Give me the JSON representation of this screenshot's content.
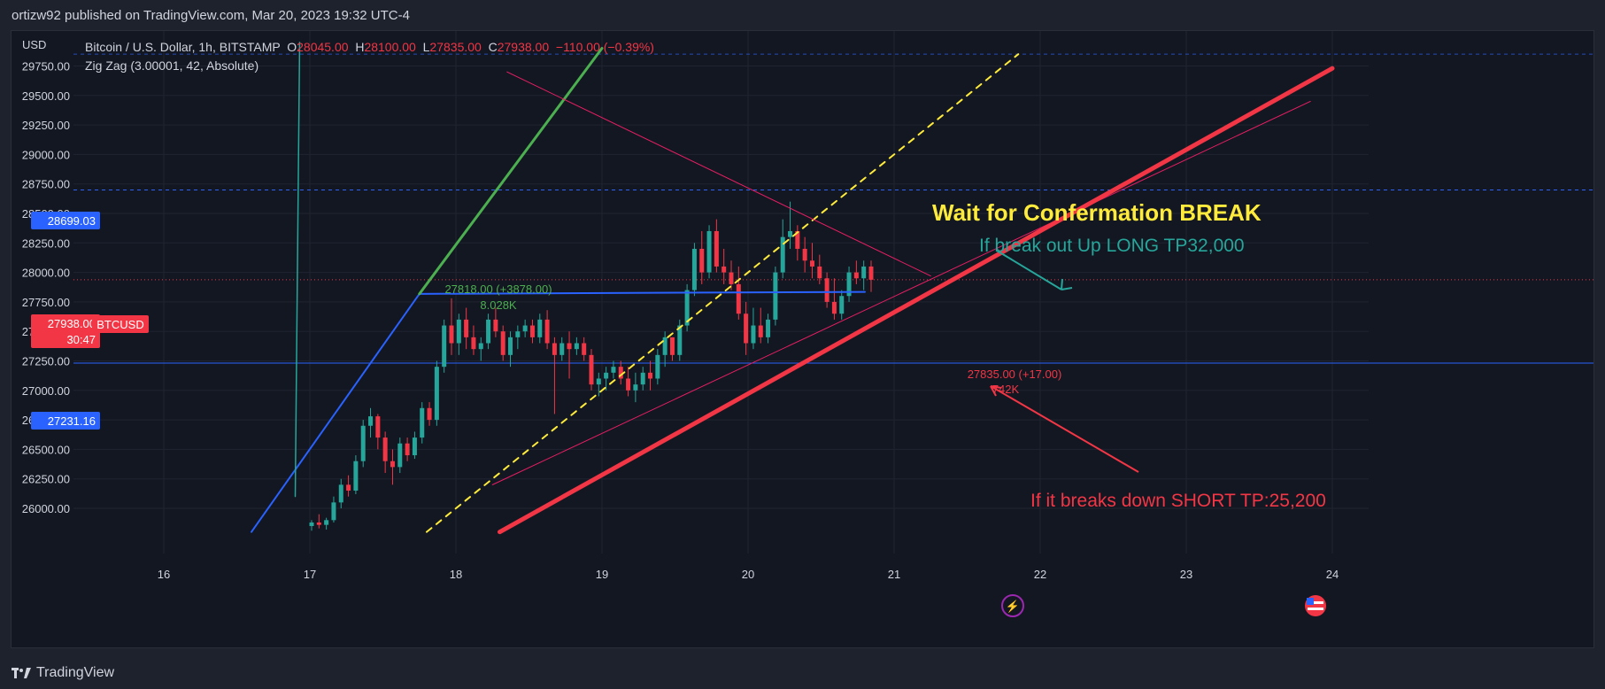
{
  "header": {
    "published_text": "ortizw92 published on TradingView.com, Mar 20, 2023 19:32 UTC-4"
  },
  "legend": {
    "symbol": "Bitcoin / U.S. Dollar, 1h, BITSTAMP",
    "open_label": "O",
    "open": "28045.00",
    "high_label": "H",
    "high": "28100.00",
    "low_label": "L",
    "low": "27835.00",
    "close_label": "C",
    "close": "27938.00",
    "change": "−110.00 (−0.39%)",
    "indicator": "Zig Zag (3.00001, 42, Absolute)"
  },
  "axis": {
    "currency": "USD"
  },
  "price_tags": {
    "upper": "28699.03",
    "lower": "27231.16",
    "current": "27938.00",
    "countdown": "30:47",
    "ticker": "BTCUSD"
  },
  "annotations": {
    "wait": "Wait for Confermation BREAK",
    "long": "If break out Up LONG TP32,000",
    "short": "If it breaks down SHORT TP:25,200",
    "zz_high": "27818.00 (+3878.00)",
    "zz_high_vol": "8.028K",
    "zz_low": "27835.00 (+17.00)",
    "zz_low_vol": "742K"
  },
  "footer": {
    "brand": "TradingView"
  },
  "colors": {
    "background": "#131722",
    "up": "#26a69a",
    "down": "#f23645",
    "accent_blue": "#2962ff",
    "yellow": "#ffeb3b",
    "green_line": "#4caf50",
    "magenta": "#e91e63"
  },
  "chart_data": {
    "type": "candlestick",
    "x_axis_ticks": [
      "16",
      "17",
      "18",
      "19",
      "20",
      "21",
      "22",
      "23",
      "24"
    ],
    "y_axis_ticks": [
      "26000.00",
      "26250.00",
      "26500.00",
      "26750.00",
      "27000.00",
      "27250.00",
      "27500.00",
      "27750.00",
      "28000.00",
      "28250.00",
      "28500.00",
      "28750.00",
      "29000.00",
      "29250.00",
      "29500.00",
      "29750.00"
    ],
    "ylim": [
      25800,
      29950
    ],
    "horizontal_levels": [
      28699.03,
      27231.16,
      27938.0
    ],
    "candles_ohlc": [
      [
        25850,
        25900,
        25810,
        25880
      ],
      [
        25880,
        25950,
        25830,
        25860
      ],
      [
        25860,
        25920,
        25820,
        25900
      ],
      [
        25900,
        26100,
        25880,
        26050
      ],
      [
        26050,
        26250,
        26000,
        26200
      ],
      [
        26200,
        26280,
        26100,
        26150
      ],
      [
        26150,
        26450,
        26120,
        26400
      ],
      [
        26400,
        26750,
        26350,
        26700
      ],
      [
        26700,
        26850,
        26600,
        26780
      ],
      [
        26780,
        26800,
        26500,
        26600
      ],
      [
        26600,
        26650,
        26300,
        26400
      ],
      [
        26400,
        26500,
        26200,
        26350
      ],
      [
        26350,
        26600,
        26300,
        26550
      ],
      [
        26550,
        26600,
        26400,
        26450
      ],
      [
        26450,
        26650,
        26420,
        26600
      ],
      [
        26600,
        26900,
        26550,
        26850
      ],
      [
        26850,
        26900,
        26700,
        26750
      ],
      [
        26750,
        27250,
        26700,
        27200
      ],
      [
        27200,
        27600,
        27150,
        27550
      ],
      [
        27550,
        27780,
        27300,
        27400
      ],
      [
        27400,
        27650,
        27300,
        27600
      ],
      [
        27600,
        27700,
        27350,
        27450
      ],
      [
        27450,
        27550,
        27300,
        27350
      ],
      [
        27350,
        27450,
        27250,
        27400
      ],
      [
        27400,
        27650,
        27350,
        27600
      ],
      [
        27600,
        27700,
        27450,
        27500
      ],
      [
        27500,
        27550,
        27250,
        27300
      ],
      [
        27300,
        27500,
        27200,
        27450
      ],
      [
        27450,
        27550,
        27350,
        27500
      ],
      [
        27500,
        27600,
        27450,
        27550
      ],
      [
        27550,
        27600,
        27400,
        27450
      ],
      [
        27450,
        27650,
        27400,
        27600
      ],
      [
        27600,
        27680,
        27350,
        27400
      ],
      [
        27400,
        27450,
        26800,
        27300
      ],
      [
        27300,
        27450,
        27250,
        27400
      ],
      [
        27400,
        27500,
        27100,
        27350
      ],
      [
        27350,
        27450,
        27300,
        27400
      ],
      [
        27400,
        27450,
        27250,
        27300
      ],
      [
        27300,
        27350,
        27000,
        27050
      ],
      [
        27050,
        27150,
        26950,
        27100
      ],
      [
        27100,
        27200,
        27000,
        27150
      ],
      [
        27150,
        27250,
        27100,
        27200
      ],
      [
        27200,
        27250,
        27050,
        27100
      ],
      [
        27100,
        27200,
        26950,
        27000
      ],
      [
        27000,
        27150,
        26900,
        27050
      ],
      [
        27050,
        27200,
        27000,
        27150
      ],
      [
        27150,
        27250,
        27000,
        27100
      ],
      [
        27100,
        27350,
        27050,
        27300
      ],
      [
        27300,
        27500,
        27200,
        27450
      ],
      [
        27450,
        27450,
        27250,
        27300
      ],
      [
        27300,
        27600,
        27250,
        27550
      ],
      [
        27550,
        27900,
        27500,
        27850
      ],
      [
        27850,
        28250,
        27800,
        28200
      ],
      [
        28200,
        28350,
        27900,
        28000
      ],
      [
        28000,
        28400,
        27950,
        28350
      ],
      [
        28350,
        28450,
        28000,
        28050
      ],
      [
        28050,
        28200,
        27900,
        28000
      ],
      [
        28000,
        28100,
        27850,
        27900
      ],
      [
        27900,
        28050,
        27600,
        27650
      ],
      [
        27650,
        27750,
        27300,
        27400
      ],
      [
        27400,
        27700,
        27350,
        27550
      ],
      [
        27550,
        27700,
        27400,
        27450
      ],
      [
        27450,
        27650,
        27400,
        27600
      ],
      [
        27600,
        28050,
        27550,
        28000
      ],
      [
        28000,
        28450,
        27950,
        28300
      ],
      [
        28300,
        28600,
        28200,
        28350
      ],
      [
        28350,
        28400,
        28100,
        28200
      ],
      [
        28200,
        28300,
        28000,
        28100
      ],
      [
        28100,
        28250,
        27950,
        28050
      ],
      [
        28050,
        28150,
        27900,
        27950
      ],
      [
        27950,
        28000,
        27700,
        27750
      ],
      [
        27750,
        27950,
        27600,
        27650
      ],
      [
        27650,
        27850,
        27600,
        27800
      ],
      [
        27800,
        28050,
        27750,
        28000
      ],
      [
        28000,
        28100,
        27900,
        27950
      ],
      [
        27950,
        28100,
        27850,
        28050
      ],
      [
        28050,
        28100,
        27835,
        27938
      ]
    ],
    "drawings": [
      {
        "name": "zigzag",
        "points": [
          [
            16.6,
            25800
          ],
          [
            17.75,
            27818
          ],
          [
            20.8,
            27835
          ]
        ]
      },
      {
        "name": "yellow-dashed-trend",
        "points": [
          [
            17.8,
            25800
          ],
          [
            21.85,
            29850
          ]
        ]
      },
      {
        "name": "green-steep-line",
        "points": [
          [
            17.75,
            27818
          ],
          [
            19.0,
            29900
          ]
        ]
      },
      {
        "name": "teal-vertical-line",
        "points": [
          [
            16.9,
            26100
          ],
          [
            16.93,
            29950
          ]
        ]
      },
      {
        "name": "magenta-descending-line",
        "points": [
          [
            18.35,
            29700
          ],
          [
            21.25,
            27970
          ]
        ]
      },
      {
        "name": "magenta-ascending-line",
        "points": [
          [
            18.25,
            26200
          ],
          [
            23.85,
            29450
          ]
        ]
      },
      {
        "name": "red-thick-support",
        "points": [
          [
            18.3,
            25800
          ],
          [
            24.0,
            29730
          ]
        ]
      }
    ]
  }
}
